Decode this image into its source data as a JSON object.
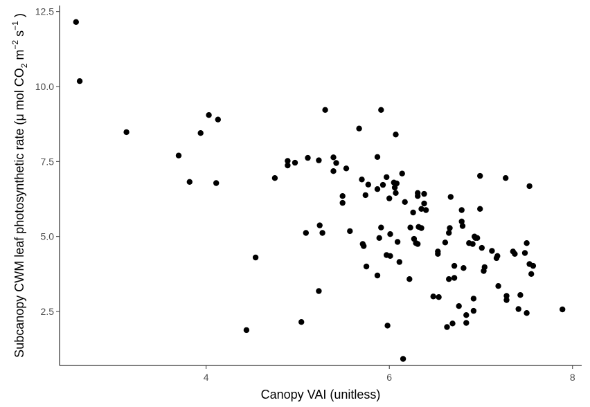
{
  "chart_data": {
    "type": "scatter",
    "xlabel": "Canopy VAI (unitless)",
    "ylabel": {
      "prefix": "Subcanopy CWM leaf photosynthetic rate (",
      "mu": "μ",
      "mol": " mol CO",
      "sub2": "2",
      "m": " m",
      "sup_m": "−2",
      "s": " s",
      "sup_s": "−1",
      "suffix": " )"
    },
    "xlim": [
      2.4,
      8.1
    ],
    "ylim": [
      0.7,
      12.7
    ],
    "xticks": [
      4,
      6,
      8
    ],
    "xtick_labels": [
      "4",
      "6",
      "8"
    ],
    "yticks": [
      2.5,
      5.0,
      7.5,
      10.0,
      12.5
    ],
    "ytick_labels": [
      "2.5",
      "5.0",
      "7.5",
      "10.0",
      "12.5"
    ],
    "grid": false,
    "points": [
      [
        2.58,
        12.15
      ],
      [
        2.62,
        10.18
      ],
      [
        3.13,
        8.48
      ],
      [
        3.7,
        7.7
      ],
      [
        3.82,
        6.82
      ],
      [
        3.94,
        8.45
      ],
      [
        4.03,
        9.05
      ],
      [
        4.11,
        6.78
      ],
      [
        4.13,
        8.9
      ],
      [
        4.44,
        1.88
      ],
      [
        4.54,
        4.3
      ],
      [
        4.75,
        6.95
      ],
      [
        4.89,
        7.52
      ],
      [
        4.89,
        7.37
      ],
      [
        4.97,
        7.46
      ],
      [
        5.04,
        2.15
      ],
      [
        5.09,
        5.12
      ],
      [
        5.11,
        7.62
      ],
      [
        5.23,
        7.54
      ],
      [
        5.24,
        5.37
      ],
      [
        5.27,
        5.12
      ],
      [
        5.23,
        3.18
      ],
      [
        5.3,
        9.22
      ],
      [
        5.39,
        7.64
      ],
      [
        5.39,
        7.18
      ],
      [
        5.42,
        7.45
      ],
      [
        5.49,
        6.35
      ],
      [
        5.49,
        6.12
      ],
      [
        5.53,
        7.27
      ],
      [
        5.57,
        5.18
      ],
      [
        5.67,
        8.6
      ],
      [
        5.7,
        6.9
      ],
      [
        5.71,
        4.75
      ],
      [
        5.72,
        4.68
      ],
      [
        5.74,
        6.38
      ],
      [
        5.75,
        4.0
      ],
      [
        5.77,
        6.73
      ],
      [
        5.87,
        6.58
      ],
      [
        5.87,
        7.65
      ],
      [
        5.87,
        3.7
      ],
      [
        5.89,
        4.95
      ],
      [
        5.91,
        9.22
      ],
      [
        5.91,
        5.3
      ],
      [
        5.93,
        6.72
      ],
      [
        5.97,
        6.98
      ],
      [
        5.97,
        4.38
      ],
      [
        5.98,
        2.03
      ],
      [
        6.0,
        6.27
      ],
      [
        6.01,
        4.35
      ],
      [
        6.01,
        5.08
      ],
      [
        6.05,
        6.8
      ],
      [
        6.06,
        6.63
      ],
      [
        6.07,
        8.4
      ],
      [
        6.07,
        6.45
      ],
      [
        6.08,
        6.77
      ],
      [
        6.09,
        4.82
      ],
      [
        6.11,
        4.15
      ],
      [
        6.14,
        7.1
      ],
      [
        6.15,
        0.92
      ],
      [
        6.17,
        6.15
      ],
      [
        6.22,
        3.58
      ],
      [
        6.23,
        5.3
      ],
      [
        6.26,
        5.8
      ],
      [
        6.27,
        4.92
      ],
      [
        6.29,
        4.78
      ],
      [
        6.31,
        6.45
      ],
      [
        6.31,
        6.35
      ],
      [
        6.31,
        4.75
      ],
      [
        6.32,
        5.32
      ],
      [
        6.35,
        5.92
      ],
      [
        6.35,
        5.28
      ],
      [
        6.38,
        6.42
      ],
      [
        6.38,
        6.1
      ],
      [
        6.4,
        5.88
      ],
      [
        6.48,
        3.0
      ],
      [
        6.53,
        4.5
      ],
      [
        6.53,
        4.42
      ],
      [
        6.54,
        2.98
      ],
      [
        6.61,
        4.8
      ],
      [
        6.63,
        1.98
      ],
      [
        6.65,
        3.58
      ],
      [
        6.65,
        5.12
      ],
      [
        6.66,
        5.28
      ],
      [
        6.67,
        6.32
      ],
      [
        6.69,
        2.1
      ],
      [
        6.71,
        4.02
      ],
      [
        6.71,
        3.62
      ],
      [
        6.76,
        2.68
      ],
      [
        6.79,
        5.88
      ],
      [
        6.79,
        5.5
      ],
      [
        6.8,
        5.35
      ],
      [
        6.81,
        3.95
      ],
      [
        6.84,
        2.38
      ],
      [
        6.84,
        2.12
      ],
      [
        6.87,
        4.78
      ],
      [
        6.91,
        4.75
      ],
      [
        6.92,
        2.52
      ],
      [
        6.92,
        2.93
      ],
      [
        6.93,
        5.0
      ],
      [
        6.94,
        4.95
      ],
      [
        6.96,
        4.95
      ],
      [
        6.99,
        7.02
      ],
      [
        6.99,
        5.92
      ],
      [
        7.01,
        4.62
      ],
      [
        7.03,
        3.85
      ],
      [
        7.04,
        3.98
      ],
      [
        7.12,
        4.52
      ],
      [
        7.17,
        4.28
      ],
      [
        7.18,
        4.35
      ],
      [
        7.19,
        3.35
      ],
      [
        7.27,
        6.95
      ],
      [
        7.28,
        3.02
      ],
      [
        7.28,
        2.88
      ],
      [
        7.35,
        4.5
      ],
      [
        7.37,
        4.42
      ],
      [
        7.41,
        2.58
      ],
      [
        7.43,
        3.05
      ],
      [
        7.48,
        4.45
      ],
      [
        7.5,
        4.78
      ],
      [
        7.5,
        2.45
      ],
      [
        7.53,
        6.68
      ],
      [
        7.53,
        4.08
      ],
      [
        7.55,
        3.75
      ],
      [
        7.57,
        4.02
      ],
      [
        7.89,
        2.57
      ]
    ]
  }
}
